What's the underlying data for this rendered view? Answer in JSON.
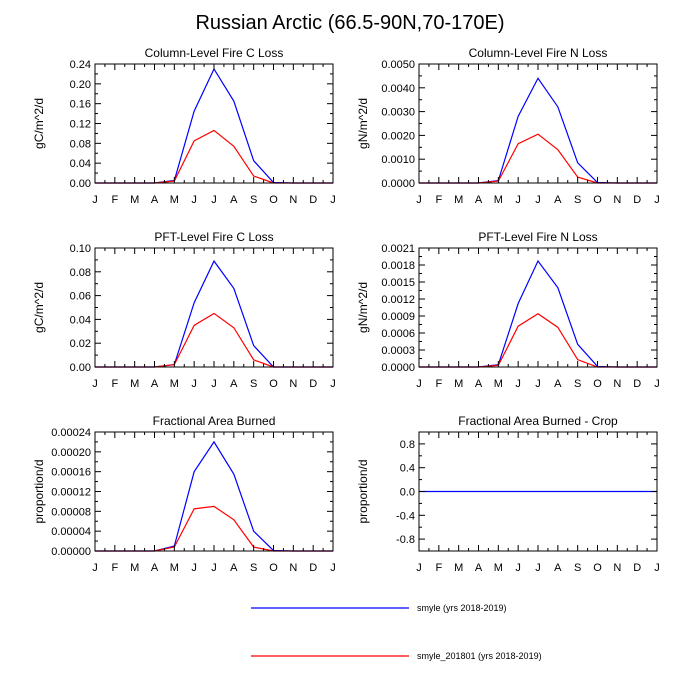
{
  "title": "Russian Arctic (66.5-90N,70-170E)",
  "legend": [
    {
      "label": "smyle (yrs 2018-2019)",
      "color": "#0000ff"
    },
    {
      "label": "smyle_201801 (yrs 2018-2019)",
      "color": "#ff0000"
    }
  ],
  "chart_data": [
    {
      "type": "line",
      "title": "Column-Level Fire C Loss",
      "ylabel": "gC/m^2/d",
      "categories": [
        "J",
        "F",
        "M",
        "A",
        "M",
        "J",
        "J",
        "A",
        "S",
        "O",
        "N",
        "D",
        "J"
      ],
      "ylim": [
        0,
        0.24
      ],
      "yticks": [
        "0.00",
        "0.04",
        "0.08",
        "0.12",
        "0.16",
        "0.20",
        "0.24"
      ],
      "series": [
        {
          "name": "smyle (yrs 2018-2019)",
          "color": "#0000ff",
          "values": [
            0,
            0,
            0,
            0,
            0.005,
            0.145,
            0.23,
            0.165,
            0.045,
            0.001,
            0,
            0,
            0
          ]
        },
        {
          "name": "smyle_201801 (yrs 2018-2019)",
          "color": "#ff0000",
          "values": [
            0,
            0,
            0,
            0,
            0.004,
            0.085,
            0.106,
            0.074,
            0.014,
            0,
            0,
            0,
            0
          ]
        }
      ]
    },
    {
      "type": "line",
      "title": "Column-Level Fire N Loss",
      "ylabel": "gN/m^2/d",
      "categories": [
        "J",
        "F",
        "M",
        "A",
        "M",
        "J",
        "J",
        "A",
        "S",
        "O",
        "N",
        "D",
        "J"
      ],
      "ylim": [
        0,
        0.005
      ],
      "yticks": [
        "0.0000",
        "0.0010",
        "0.0020",
        "0.0030",
        "0.0040",
        "0.0050"
      ],
      "series": [
        {
          "name": "smyle (yrs 2018-2019)",
          "color": "#0000ff",
          "values": [
            0,
            0,
            0,
            0,
            0.0001,
            0.0028,
            0.0044,
            0.0032,
            0.00085,
            2e-05,
            0,
            0,
            0
          ]
        },
        {
          "name": "smyle_201801 (yrs 2018-2019)",
          "color": "#ff0000",
          "values": [
            0,
            0,
            0,
            0,
            8e-05,
            0.00165,
            0.00205,
            0.0014,
            0.00025,
            0,
            0,
            0,
            0
          ]
        }
      ]
    },
    {
      "type": "line",
      "title": "PFT-Level Fire C Loss",
      "ylabel": "gC/m^2/d",
      "categories": [
        "J",
        "F",
        "M",
        "A",
        "M",
        "J",
        "J",
        "A",
        "S",
        "O",
        "N",
        "D",
        "J"
      ],
      "ylim": [
        0,
        0.1
      ],
      "yticks": [
        "0.00",
        "0.02",
        "0.04",
        "0.06",
        "0.08",
        "0.10"
      ],
      "series": [
        {
          "name": "smyle (yrs 2018-2019)",
          "color": "#0000ff",
          "values": [
            0,
            0,
            0,
            0,
            0.002,
            0.054,
            0.089,
            0.066,
            0.018,
            0,
            0,
            0,
            0
          ]
        },
        {
          "name": "smyle_201801 (yrs 2018-2019)",
          "color": "#ff0000",
          "values": [
            0,
            0,
            0,
            0,
            0.002,
            0.035,
            0.045,
            0.033,
            0.006,
            0,
            0,
            0,
            0
          ]
        }
      ]
    },
    {
      "type": "line",
      "title": "PFT-Level Fire N Loss",
      "ylabel": "gN/m^2/d",
      "categories": [
        "J",
        "F",
        "M",
        "A",
        "M",
        "J",
        "J",
        "A",
        "S",
        "O",
        "N",
        "D",
        "J"
      ],
      "ylim": [
        0,
        0.0021
      ],
      "yticks": [
        "0.0000",
        "0.0003",
        "0.0006",
        "0.0009",
        "0.0012",
        "0.0015",
        "0.0018",
        "0.0021"
      ],
      "series": [
        {
          "name": "smyle (yrs 2018-2019)",
          "color": "#0000ff",
          "values": [
            0,
            0,
            0,
            0,
            4e-05,
            0.00112,
            0.00187,
            0.0014,
            0.0004,
            1e-05,
            0,
            0,
            0
          ]
        },
        {
          "name": "smyle_201801 (yrs 2018-2019)",
          "color": "#ff0000",
          "values": [
            0,
            0,
            0,
            0,
            3e-05,
            0.00072,
            0.00094,
            0.0007,
            0.00013,
            0,
            0,
            0,
            0
          ]
        }
      ]
    },
    {
      "type": "line",
      "title": "Fractional Area Burned",
      "ylabel": "proportion/d",
      "categories": [
        "J",
        "F",
        "M",
        "A",
        "M",
        "J",
        "J",
        "A",
        "S",
        "O",
        "N",
        "D",
        "J"
      ],
      "ylim": [
        0,
        0.00024
      ],
      "yticks": [
        "0.00000",
        "0.00004",
        "0.00008",
        "0.00012",
        "0.00016",
        "0.00020",
        "0.00024"
      ],
      "series": [
        {
          "name": "smyle (yrs 2018-2019)",
          "color": "#0000ff",
          "values": [
            0,
            0,
            0,
            0,
            1e-05,
            0.00016,
            0.00022,
            0.000155,
            4e-05,
            1e-06,
            0,
            0,
            0
          ]
        },
        {
          "name": "smyle_201801 (yrs 2018-2019)",
          "color": "#ff0000",
          "values": [
            0,
            0,
            0,
            0,
            8e-06,
            8.5e-05,
            9e-05,
            6.3e-05,
            8e-06,
            0,
            0,
            0,
            0
          ]
        }
      ]
    },
    {
      "type": "line",
      "title": "Fractional Area Burned - Crop",
      "ylabel": "proportion/d",
      "categories": [
        "J",
        "F",
        "M",
        "A",
        "M",
        "J",
        "J",
        "A",
        "S",
        "O",
        "N",
        "D",
        "J"
      ],
      "ylim": [
        -1,
        1
      ],
      "yticks": [
        "-0.8",
        "-0.4",
        "0.0",
        "0.4",
        "0.8"
      ],
      "ytick_values": [
        -0.8,
        -0.4,
        0,
        0.4,
        0.8
      ],
      "series": [
        {
          "name": "smyle (yrs 2018-2019)",
          "color": "#0000ff",
          "values": [
            0,
            0,
            0,
            0,
            0,
            0,
            0,
            0,
            0,
            0,
            0,
            0,
            0
          ]
        }
      ]
    }
  ]
}
